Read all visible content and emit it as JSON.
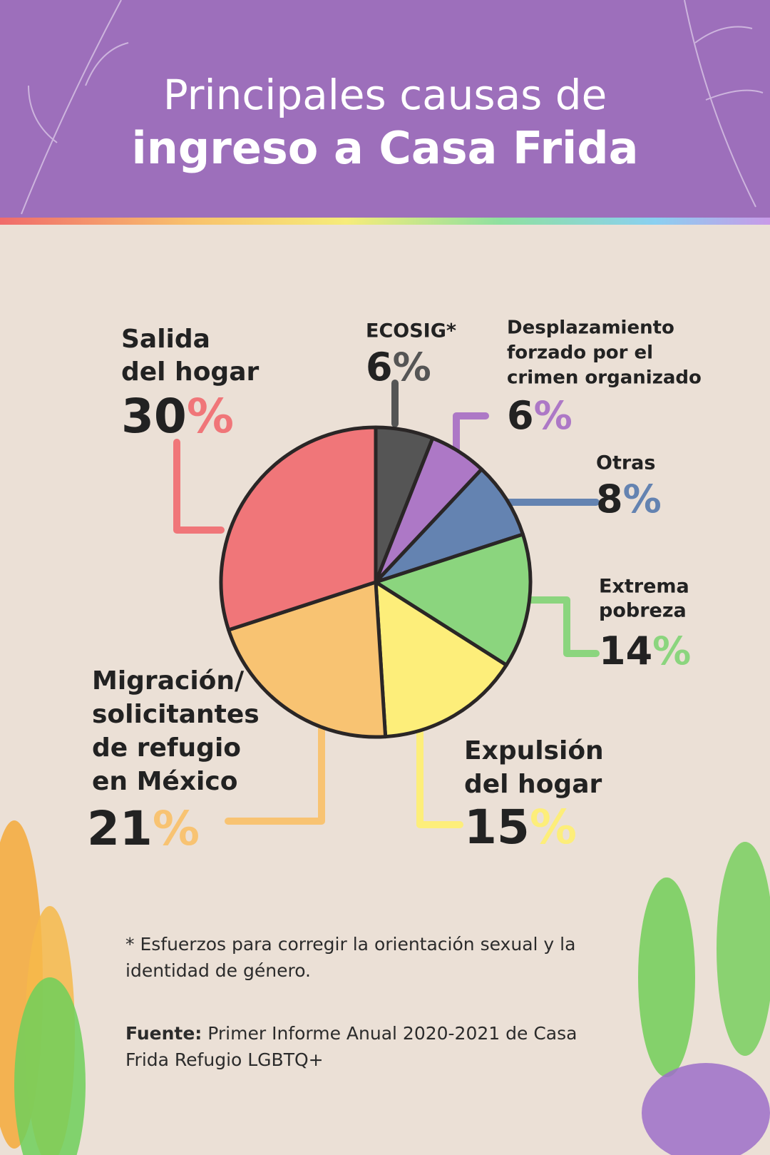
{
  "chart_data": {
    "type": "pie",
    "title": "Principales causas de",
    "title_highlight": "ingreso a Casa Frida",
    "categories": [
      [
        "ECOSIG*"
      ],
      [
        "Desplazamiento",
        "forzado por el",
        "crimen organizado"
      ],
      [
        "Otras"
      ],
      [
        "Extrema",
        "pobreza"
      ],
      [
        "Expulsión",
        "del hogar"
      ],
      [
        "Migración/",
        "solicitantes",
        "de refugio",
        "en México"
      ],
      [
        "Salida",
        "del hogar"
      ]
    ],
    "values": [
      6,
      6,
      8,
      14,
      15,
      21,
      30
    ],
    "unit": "%",
    "colors": [
      "#555555",
      "#ad78c6",
      "#6483b1",
      "#8bd57e",
      "#fdee7a",
      "#f8c372",
      "#f07679"
    ]
  },
  "footnote": "* Esfuerzos para corregir la orientación sexual y la identidad de género.",
  "source_label": "Fuente:",
  "source": "Primer Informe Anual 2020-2021 de Casa Frida Refugio LGBTQ+"
}
